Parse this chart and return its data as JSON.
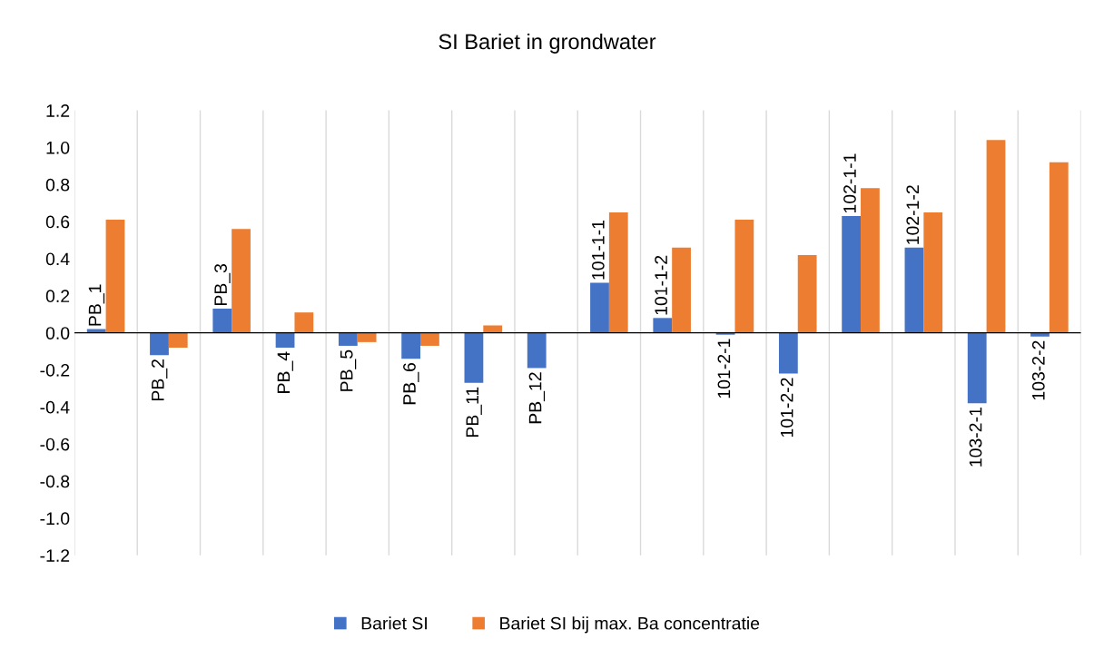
{
  "chart_data": {
    "type": "bar",
    "title": "SI Bariet in grondwater",
    "categories": [
      "PB_1",
      "PB_2",
      "PB_3",
      "PB_4",
      "PB_5",
      "PB_6",
      "PB_11",
      "PB_12",
      "101-1-1",
      "101-1-2",
      "101-2-1",
      "101-2-2",
      "102-1-1",
      "102-1-2",
      "103-2-1",
      "103-2-2"
    ],
    "series": [
      {
        "name": "Bariet SI",
        "color": "#4472c4",
        "values": [
          0.02,
          -0.12,
          0.13,
          -0.08,
          -0.07,
          -0.14,
          -0.27,
          -0.19,
          0.27,
          0.08,
          -0.01,
          -0.22,
          0.63,
          0.46,
          -0.38,
          -0.02
        ]
      },
      {
        "name": "Bariet SI bij max. Ba concentratie",
        "color": "#ed7d31",
        "values": [
          0.61,
          -0.08,
          0.56,
          0.11,
          -0.05,
          -0.07,
          0.04,
          null,
          0.65,
          0.46,
          0.61,
          0.42,
          0.78,
          0.65,
          1.04,
          0.92
        ]
      }
    ],
    "ylim": [
      -1.2,
      1.2
    ],
    "yticks": [
      {
        "value": -1.2,
        "label": "-1.2"
      },
      {
        "value": -1.0,
        "label": "-1.0"
      },
      {
        "value": -0.8,
        "label": "-0.8"
      },
      {
        "value": -0.6,
        "label": "-0.6"
      },
      {
        "value": -0.4,
        "label": "-0.4"
      },
      {
        "value": -0.2,
        "label": "-0.2"
      },
      {
        "value": 0.0,
        "label": "0.0"
      },
      {
        "value": 0.2,
        "label": "0.2"
      },
      {
        "value": 0.4,
        "label": "0.4"
      },
      {
        "value": 0.6,
        "label": "0.6"
      },
      {
        "value": 0.8,
        "label": "0.8"
      },
      {
        "value": 1.0,
        "label": "1.0"
      },
      {
        "value": 1.2,
        "label": "1.2"
      }
    ],
    "grid": "x",
    "legend": "bottom"
  }
}
